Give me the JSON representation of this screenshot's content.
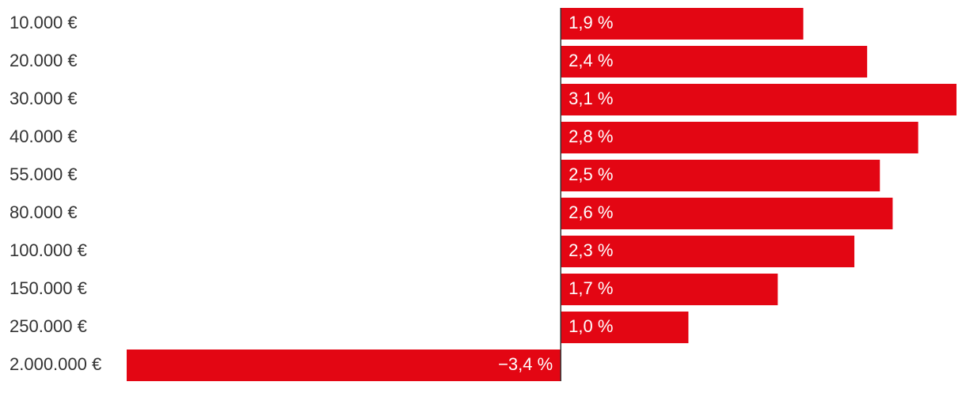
{
  "chart_data": {
    "type": "bar",
    "orientation": "horizontal",
    "categories": [
      "10.000 €",
      "20.000 €",
      "30.000 €",
      "40.000 €",
      "55.000 €",
      "80.000 €",
      "100.000 €",
      "150.000 €",
      "250.000 €",
      "2.000.000 €"
    ],
    "values": [
      1.9,
      2.4,
      3.1,
      2.8,
      2.5,
      2.6,
      2.3,
      1.7,
      1.0,
      -3.4
    ],
    "value_labels": [
      "1,9 %",
      "2,4 %",
      "3,1 %",
      "2,8 %",
      "2,5 %",
      "2,6 %",
      "2,3 %",
      "1,7 %",
      "1,0 %",
      "−3,4 %"
    ],
    "xlim": [
      -3.4,
      3.1
    ],
    "title": "",
    "xlabel": "",
    "ylabel": "",
    "grid": false,
    "legend": "none",
    "colors": {
      "bar": "#e30613",
      "bar_label": "#ffffff",
      "category_label": "#333333",
      "axis": "#333333"
    }
  }
}
